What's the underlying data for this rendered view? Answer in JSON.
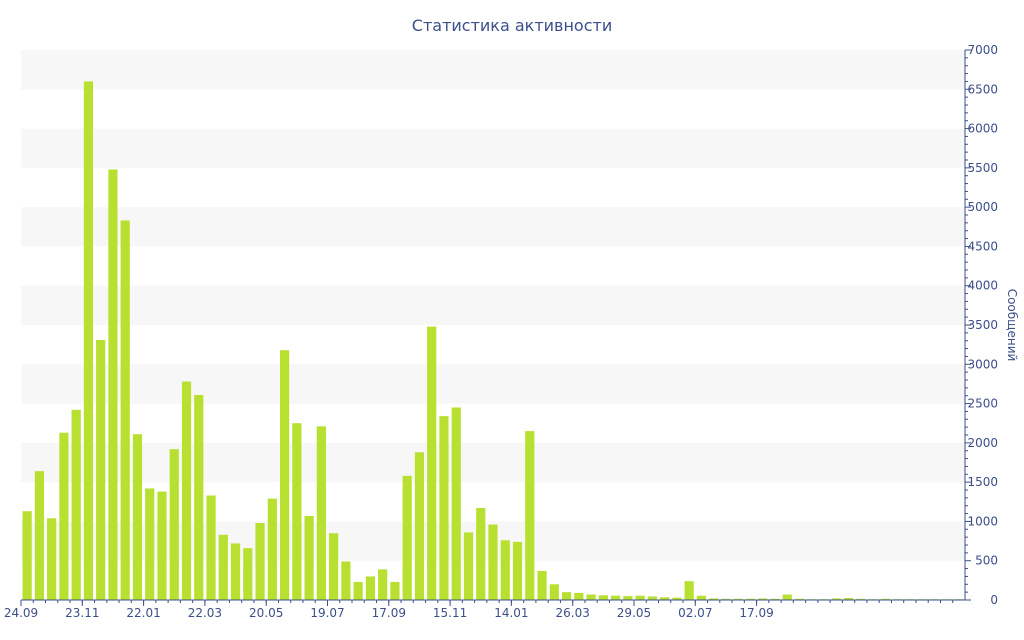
{
  "chart_data": {
    "type": "bar",
    "title": "Статистика активности",
    "xlabel": "",
    "ylabel": "Сообщений",
    "y_axis_position": "right",
    "ylim": [
      0,
      7000
    ],
    "y_major_ticks": [
      0,
      500,
      1000,
      1500,
      2000,
      2500,
      3000,
      3500,
      4000,
      4500,
      5000,
      5500,
      6000,
      6500,
      7000
    ],
    "y_minor_step": 100,
    "grid": "alternating horizontal bands",
    "x_tick_labels": [
      {
        "index": 0,
        "label": "24.09"
      },
      {
        "index": 5,
        "label": "23.11"
      },
      {
        "index": 10,
        "label": "22.01"
      },
      {
        "index": 15,
        "label": "22.03"
      },
      {
        "index": 20,
        "label": "20.05"
      },
      {
        "index": 25,
        "label": "19.07"
      },
      {
        "index": 30,
        "label": "17.09"
      },
      {
        "index": 35,
        "label": "15.11"
      },
      {
        "index": 40,
        "label": "14.01"
      },
      {
        "index": 45,
        "label": "26.03"
      },
      {
        "index": 50,
        "label": "29.05"
      },
      {
        "index": 55,
        "label": "02.07"
      },
      {
        "index": 60,
        "label": "17.09"
      }
    ],
    "values": [
      1130,
      1640,
      1040,
      2130,
      2420,
      6600,
      3310,
      5480,
      4830,
      2110,
      1420,
      1380,
      1920,
      2780,
      2610,
      1330,
      830,
      720,
      660,
      980,
      1290,
      3180,
      2250,
      1070,
      2210,
      850,
      490,
      230,
      300,
      390,
      230,
      1580,
      1880,
      3480,
      2340,
      2450,
      860,
      1170,
      960,
      760,
      740,
      2150,
      370,
      200,
      100,
      90,
      70,
      60,
      55,
      50,
      55,
      45,
      35,
      30,
      240,
      55,
      20,
      15,
      15,
      15,
      20,
      15,
      70,
      15,
      10,
      10,
      20,
      25,
      15,
      10,
      15,
      10,
      10,
      10,
      10,
      10,
      10
    ],
    "bar_color": "#b8e030",
    "text_color": "#3d4f8a"
  }
}
